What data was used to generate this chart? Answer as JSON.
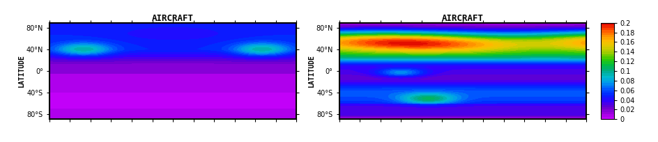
{
  "title": "AIRCRAFT",
  "ylabel": "LATITUDE",
  "lat_ticks": [
    -80,
    -40,
    0,
    40,
    80
  ],
  "lat_labels": [
    "80°S",
    "40°S",
    "0°",
    "40°N",
    "80°N"
  ],
  "colorbar_levels": [
    0,
    0.02,
    0.04,
    0.06,
    0.08,
    0.1,
    0.12,
    0.14,
    0.16,
    0.18,
    0.2
  ],
  "vmin": 0,
  "vmax": 0.2,
  "background_color": "#ffffff",
  "title_fontsize": 9,
  "tick_fontsize": 7,
  "colorbar_fontsize": 7,
  "colors_list": [
    "#cc00ff",
    "#9900dd",
    "#6600cc",
    "#3300ff",
    "#0022ff",
    "#0055ff",
    "#0099ee",
    "#00bbcc",
    "#00aa88",
    "#00bb44",
    "#33cc00",
    "#99cc00",
    "#ddcc00",
    "#ffbb00",
    "#ff8800",
    "#ff4400",
    "#dd0000"
  ]
}
